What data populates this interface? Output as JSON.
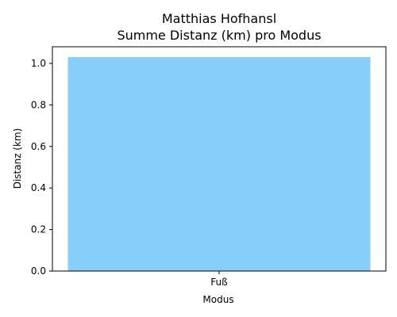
{
  "chart_data": {
    "type": "bar",
    "title": "Matthias Hofhansl",
    "subtitle": "Summe Distanz (km) pro Modus",
    "xlabel": "Modus",
    "ylabel": "Distanz (km)",
    "categories": [
      "Fuß"
    ],
    "values": [
      1.03
    ],
    "ylim": [
      0,
      1.08
    ],
    "yticks": [
      "0.0",
      "0.2",
      "0.4",
      "0.6",
      "0.8",
      "1.0"
    ],
    "grid": false,
    "bar_color": "#87CEFA"
  }
}
